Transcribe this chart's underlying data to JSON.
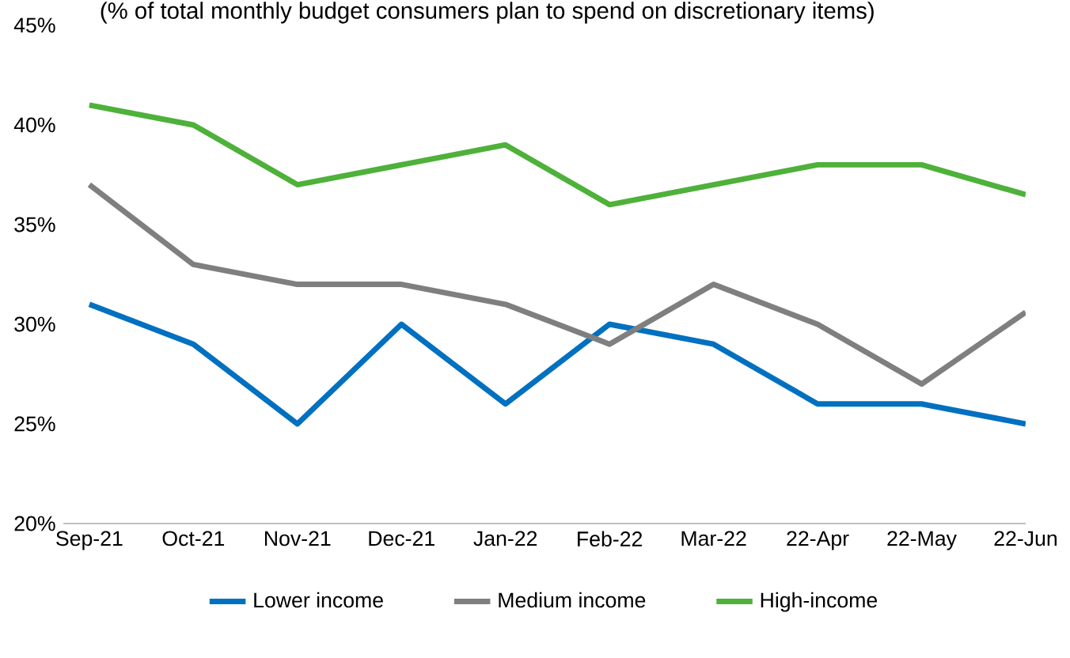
{
  "chart_data": {
    "type": "line",
    "title": "(% of total monthly budget consumers plan to spend on discretionary items)",
    "categories": [
      "Sep-21",
      "Oct-21",
      "Nov-21",
      "Dec-21",
      "Jan-22",
      "Feb-22",
      "Mar-22",
      "22-Apr",
      "22-May",
      "22-Jun"
    ],
    "series": [
      {
        "name": "Lower income",
        "color": "#0070c0",
        "values": [
          31,
          29,
          25,
          30,
          26,
          30,
          29,
          26,
          26,
          25
        ]
      },
      {
        "name": "Medium income",
        "color": "#7f7f7f",
        "values": [
          37,
          33,
          32,
          32,
          31,
          29,
          32,
          30,
          27,
          30.6
        ]
      },
      {
        "name": "High-income",
        "color": "#4eb13a",
        "values": [
          41,
          40,
          37,
          38,
          39,
          36,
          37,
          38,
          38,
          36.5
        ]
      }
    ],
    "ylim": [
      20,
      45
    ],
    "yticks": [
      {
        "value": 20,
        "label": "20%"
      },
      {
        "value": 25,
        "label": "25%"
      },
      {
        "value": 30,
        "label": "30%"
      },
      {
        "value": 35,
        "label": "35%"
      },
      {
        "value": 40,
        "label": "40%"
      },
      {
        "value": 45,
        "label": "45%"
      }
    ],
    "grid": false,
    "legend": "bottom",
    "marker": "none",
    "line_style": "solid"
  }
}
